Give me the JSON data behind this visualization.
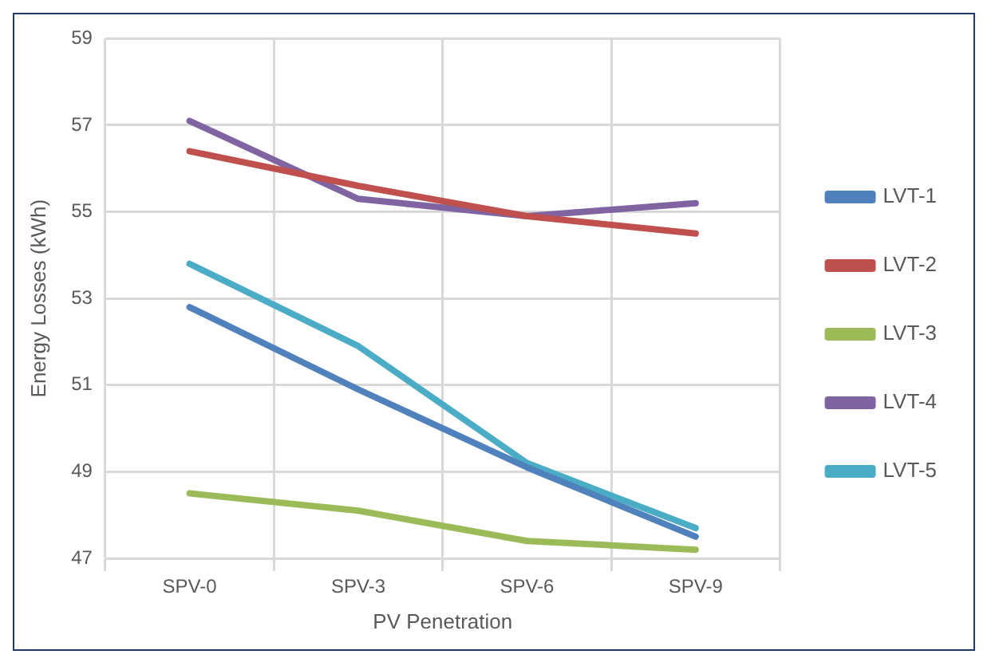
{
  "chart_data": {
    "type": "line",
    "xlabel": "PV Penetration",
    "ylabel": "Energy Losses (kWh)",
    "categories": [
      "SPV-0",
      "SPV-3",
      "SPV-6",
      "SPV-9"
    ],
    "series": [
      {
        "name": "LVT-1",
        "color": "#4f81bd",
        "values": [
          52.8,
          50.9,
          49.1,
          47.5
        ]
      },
      {
        "name": "LVT-2",
        "color": "#c0504d",
        "values": [
          56.4,
          55.6,
          54.9,
          54.5
        ]
      },
      {
        "name": "LVT-3",
        "color": "#9bbb59",
        "values": [
          48.5,
          48.1,
          47.4,
          47.2
        ]
      },
      {
        "name": "LVT-4",
        "color": "#8064a2",
        "values": [
          57.1,
          55.3,
          54.9,
          55.2
        ]
      },
      {
        "name": "LVT-5",
        "color": "#4bacc6",
        "values": [
          53.8,
          51.9,
          49.2,
          47.7
        ]
      }
    ],
    "ylim": [
      47,
      59
    ],
    "yticks": [
      47,
      49,
      51,
      53,
      55,
      57,
      59
    ],
    "grid": true,
    "legend": "right",
    "marker": "none",
    "line_style": "solid"
  }
}
